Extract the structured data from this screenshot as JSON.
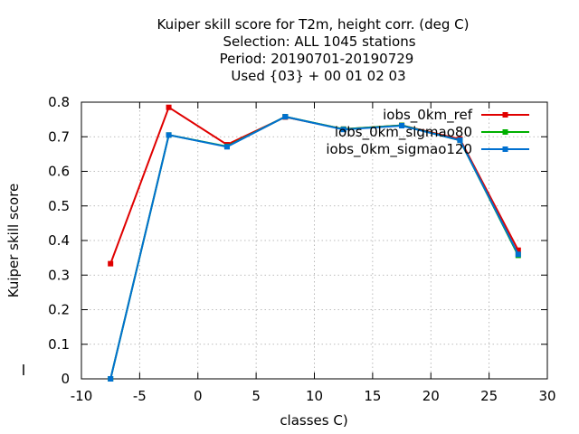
{
  "chart_data": {
    "type": "line",
    "title_lines": [
      "Kuiper skill score  for T2m, height corr. (deg C)",
      "Selection: ALL   1045 stations",
      "Period: 20190701-20190729",
      "Used {03} + 00 01 02 03"
    ],
    "xlabel": "classes C)",
    "ylabel": "Kuiper skill score",
    "xlim": [
      -10,
      30
    ],
    "ylim": [
      0,
      0.8
    ],
    "xticks": [
      -10,
      -5,
      0,
      5,
      10,
      15,
      20,
      25,
      30
    ],
    "yticks": [
      0,
      0.1,
      0.2,
      0.3,
      0.4,
      0.5,
      0.6,
      0.7,
      0.8
    ],
    "xtick_labels": [
      "-10",
      "-5",
      "0",
      "5",
      "10",
      "15",
      "20",
      "25",
      "30"
    ],
    "ytick_labels": [
      "0",
      "0.1",
      "0.2",
      "0.3",
      "0.4",
      "0.5",
      "0.6",
      "0.7",
      "0.8"
    ],
    "grid": true,
    "legend_position": "top-right",
    "x": [
      -7.5,
      -2.5,
      2.5,
      7.5,
      12.5,
      17.5,
      22.5,
      27.5
    ],
    "series": [
      {
        "name": "iobs_0km_ref",
        "color": "#e00000",
        "values": [
          0.333,
          0.785,
          0.677,
          0.757,
          0.722,
          0.733,
          0.693,
          0.372
        ]
      },
      {
        "name": "iobs_0km_sigmao80",
        "color": "#00b000",
        "values": [
          0.0,
          0.705,
          0.672,
          0.758,
          0.722,
          0.733,
          0.69,
          0.357
        ]
      },
      {
        "name": "iobs_0km_sigmao120",
        "color": "#0070d0",
        "values": [
          0.0,
          0.705,
          0.671,
          0.758,
          0.721,
          0.732,
          0.69,
          0.36
        ]
      }
    ]
  }
}
